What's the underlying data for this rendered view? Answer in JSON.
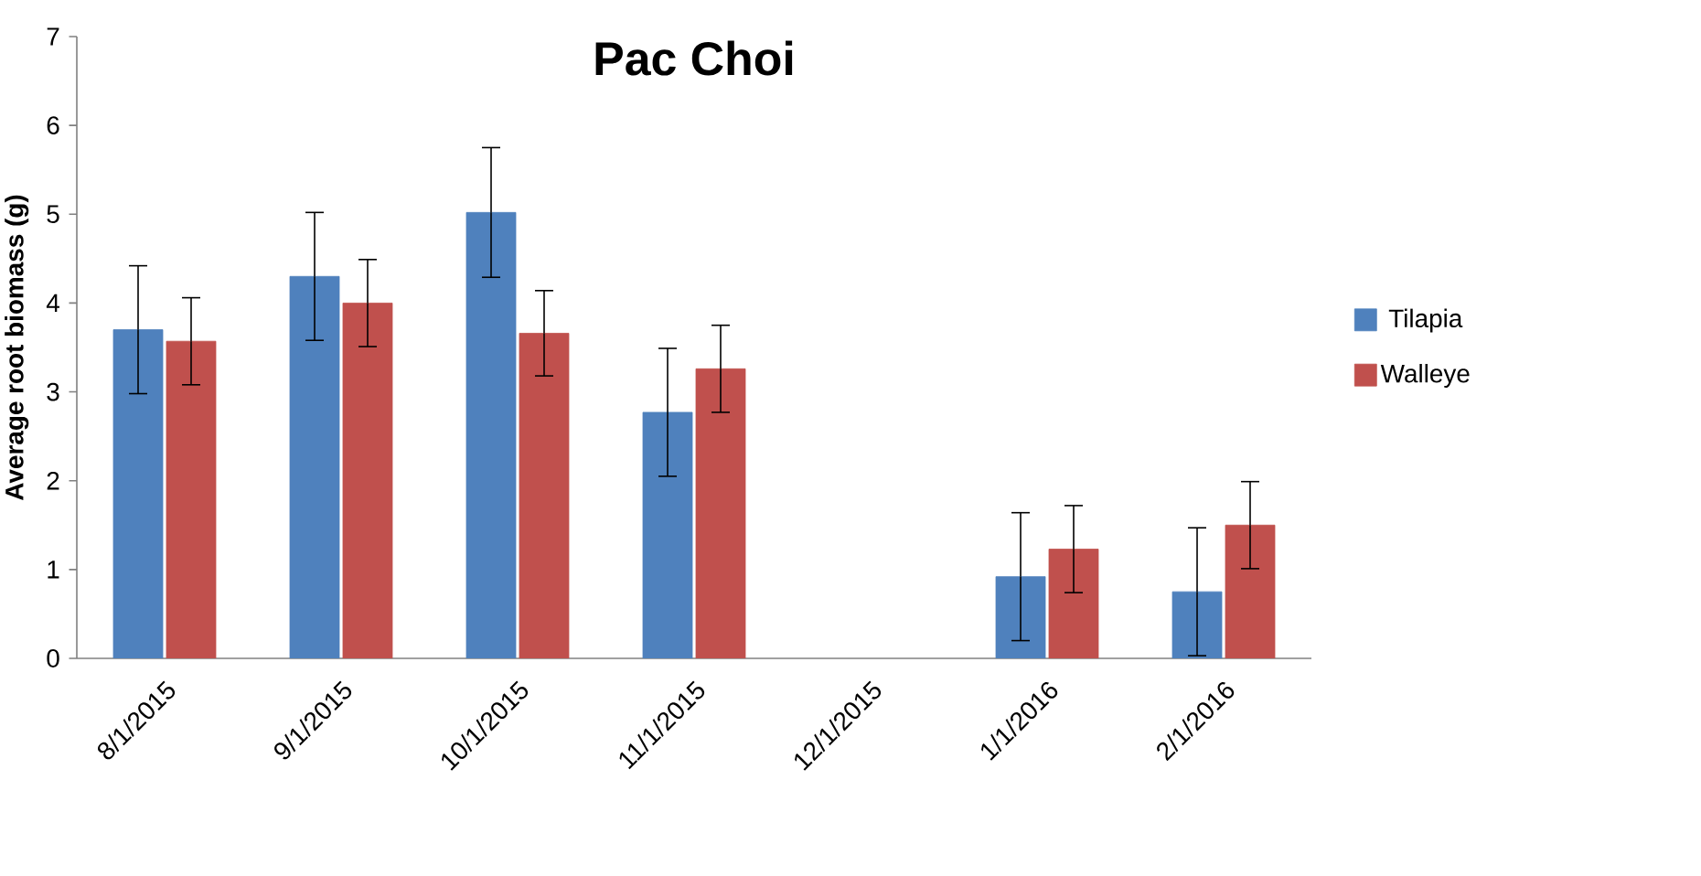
{
  "chart_data": {
    "type": "bar",
    "title": "Pac Choi",
    "ylabel": "Average root biomass (g)",
    "categories": [
      "8/1/2015",
      "9/1/2015",
      "10/1/2015",
      "11/1/2015",
      "12/1/2015",
      "1/1/2016",
      "2/1/2016"
    ],
    "series": [
      {
        "name": "Tilapia",
        "color": "#4f81bd",
        "values": [
          3.7,
          4.3,
          5.02,
          2.77,
          null,
          0.92,
          0.75
        ],
        "errors": [
          0.72,
          0.72,
          0.73,
          0.72,
          null,
          0.72,
          0.72
        ]
      },
      {
        "name": "Walleye",
        "color": "#c0504d",
        "values": [
          3.57,
          4.0,
          3.66,
          3.26,
          null,
          1.23,
          1.5
        ],
        "errors": [
          0.49,
          0.49,
          0.48,
          0.49,
          null,
          0.49,
          0.49
        ]
      }
    ],
    "ylim": [
      0,
      7
    ],
    "yticks": [
      0,
      1,
      2,
      3,
      4,
      5,
      6,
      7
    ],
    "grid": false,
    "legend": "right"
  }
}
